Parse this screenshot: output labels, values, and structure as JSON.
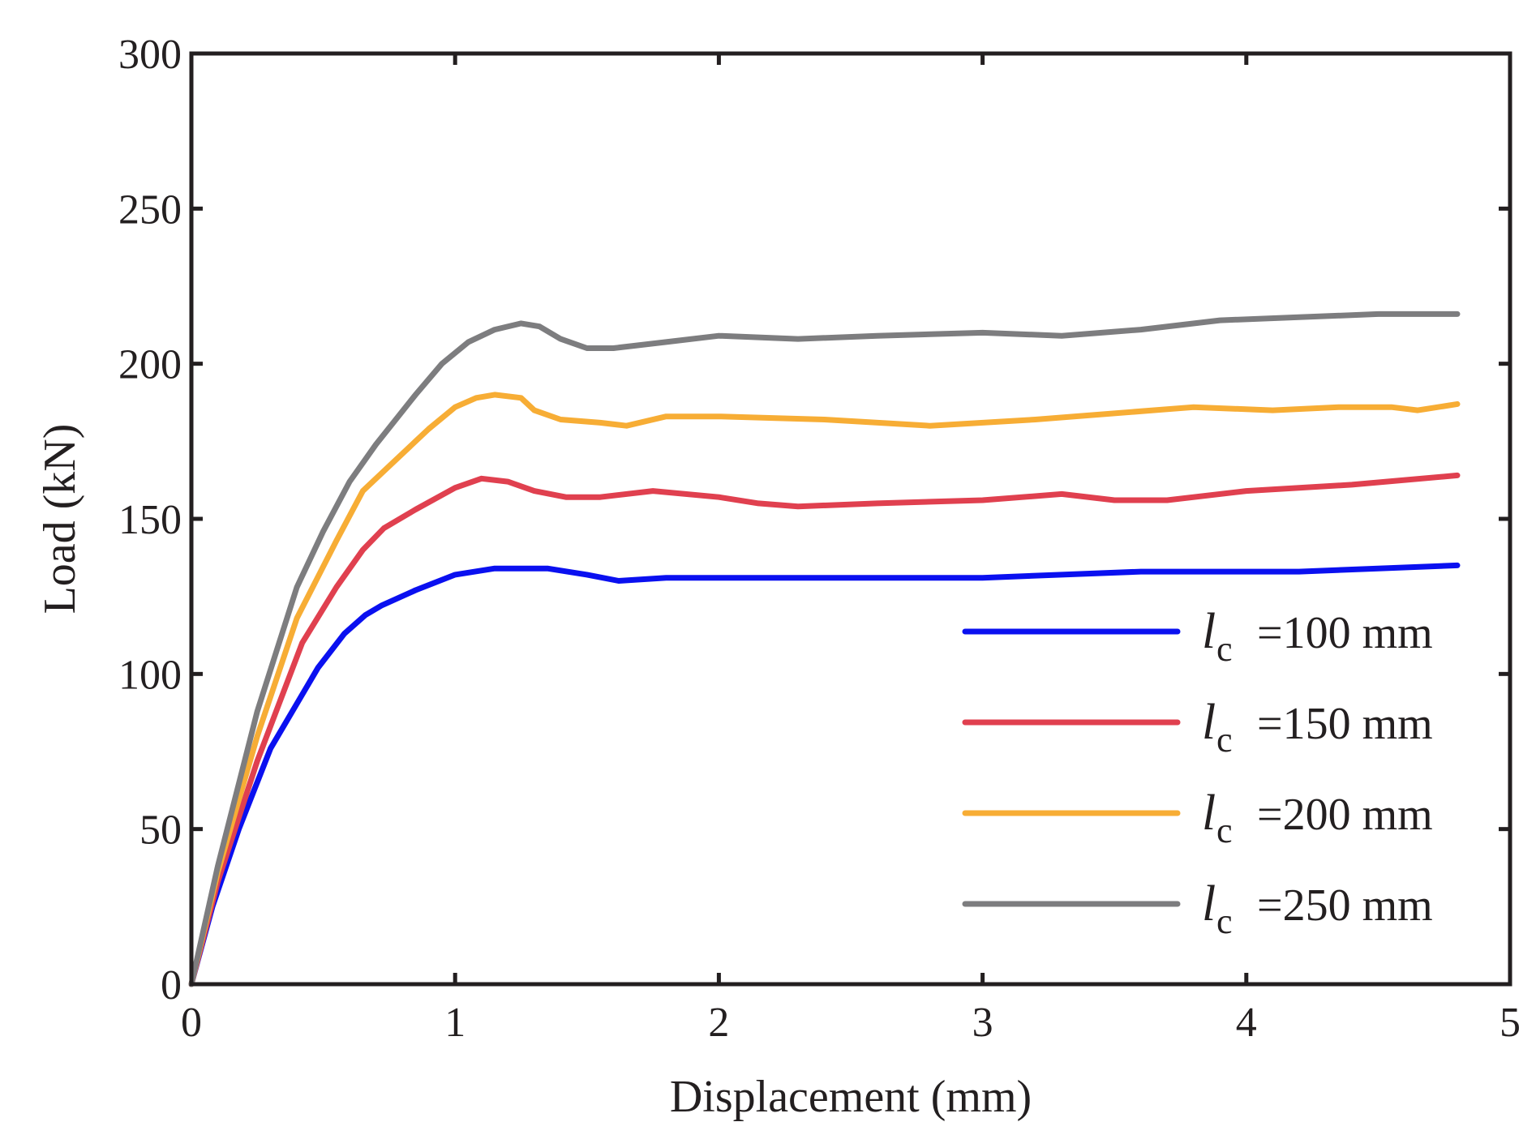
{
  "chart_data": {
    "type": "line",
    "title": "",
    "xlabel": "Displacement (mm)",
    "ylabel": "Load (kN)",
    "xlim": [
      0,
      5
    ],
    "ylim": [
      0,
      300
    ],
    "xticks": [
      0,
      1,
      2,
      3,
      4,
      5
    ],
    "yticks": [
      0,
      50,
      100,
      150,
      200,
      250,
      300
    ],
    "grid": false,
    "legend_position": "lower-right",
    "legend_symbol": "l",
    "legend_subscript": "c",
    "series": [
      {
        "name": "=100 mm",
        "color": "#0a10f0",
        "x": [
          0,
          0.08,
          0.18,
          0.3,
          0.48,
          0.58,
          0.66,
          0.72,
          0.85,
          1.0,
          1.15,
          1.35,
          1.5,
          1.62,
          1.8,
          2.0,
          2.3,
          2.6,
          3.0,
          3.3,
          3.6,
          3.8,
          4.2,
          4.5,
          4.8
        ],
        "y": [
          0,
          25,
          50,
          76,
          102,
          113,
          119,
          122,
          127,
          132,
          134,
          134,
          132,
          130,
          131,
          131,
          131,
          131,
          131,
          132,
          133,
          133,
          133,
          134,
          135
        ]
      },
      {
        "name": "=150 mm",
        "color": "#e0404f",
        "x": [
          0,
          0.1,
          0.25,
          0.42,
          0.55,
          0.65,
          0.73,
          0.85,
          1.0,
          1.1,
          1.2,
          1.3,
          1.42,
          1.55,
          1.75,
          2.0,
          2.15,
          2.3,
          2.6,
          3.0,
          3.3,
          3.5,
          3.7,
          4.0,
          4.4,
          4.8
        ],
        "y": [
          0,
          33,
          72,
          110,
          128,
          140,
          147,
          153,
          160,
          163,
          162,
          159,
          157,
          157,
          159,
          157,
          155,
          154,
          155,
          156,
          158,
          156,
          156,
          159,
          161,
          164
        ]
      },
      {
        "name": "=200 mm",
        "color": "#f7ad35",
        "x": [
          0,
          0.1,
          0.25,
          0.4,
          0.55,
          0.65,
          0.75,
          0.9,
          1.0,
          1.08,
          1.15,
          1.25,
          1.3,
          1.4,
          1.55,
          1.65,
          1.8,
          2.0,
          2.4,
          2.8,
          3.2,
          3.8,
          4.1,
          4.35,
          4.55,
          4.65,
          4.8
        ],
        "y": [
          0,
          36,
          80,
          118,
          143,
          159,
          167,
          179,
          186,
          189,
          190,
          189,
          185,
          182,
          181,
          180,
          183,
          183,
          182,
          180,
          182,
          186,
          185,
          186,
          186,
          185,
          187
        ]
      },
      {
        "name": "=250 mm",
        "color": "#7d7d7f",
        "x": [
          0,
          0.1,
          0.25,
          0.4,
          0.5,
          0.6,
          0.7,
          0.85,
          0.95,
          1.05,
          1.15,
          1.25,
          1.32,
          1.4,
          1.5,
          1.6,
          1.8,
          2.0,
          2.3,
          2.6,
          3.0,
          3.3,
          3.6,
          3.9,
          4.2,
          4.5,
          4.8
        ],
        "y": [
          0,
          38,
          88,
          128,
          146,
          162,
          174,
          190,
          200,
          207,
          211,
          213,
          212,
          208,
          205,
          205,
          207,
          209,
          208,
          209,
          210,
          209,
          211,
          214,
          215,
          216,
          216
        ]
      }
    ]
  }
}
